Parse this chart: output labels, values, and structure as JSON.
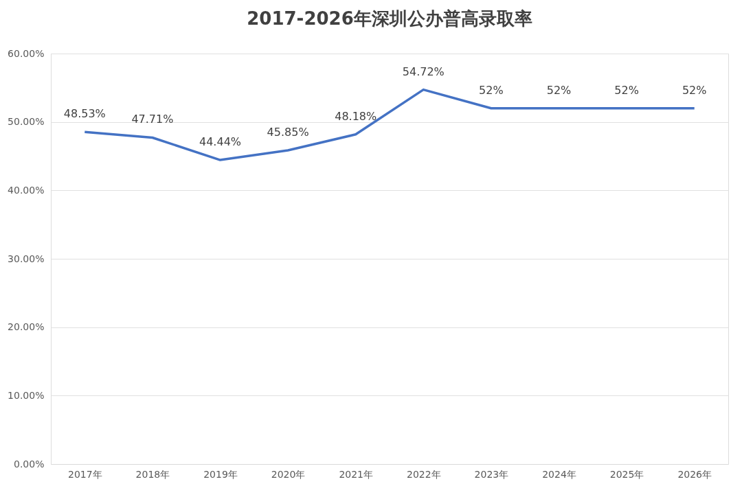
{
  "chart_data": {
    "type": "line",
    "title": "2017-2026年深圳公办普高录取率",
    "categories": [
      "2017年",
      "2018年",
      "2019年",
      "2020年",
      "2021年",
      "2022年",
      "2023年",
      "2024年",
      "2025年",
      "2026年"
    ],
    "series": [
      {
        "color": "#4472c4",
        "values": [
          48.53,
          47.71,
          44.44,
          45.85,
          48.18,
          54.72,
          52,
          52,
          52,
          52
        ],
        "value_labels": [
          "48.53%",
          "47.71%",
          "44.44%",
          "45.85%",
          "48.18%",
          "54.72%",
          "52%",
          "52%",
          "52%",
          "52%"
        ]
      }
    ],
    "ylim": [
      0,
      60
    ],
    "yticks": [
      {
        "value": 0,
        "label": "0.00%"
      },
      {
        "value": 10,
        "label": "10.00%"
      },
      {
        "value": 20,
        "label": "20.00%"
      },
      {
        "value": 30,
        "label": "30.00%"
      },
      {
        "value": 40,
        "label": "40.00%"
      },
      {
        "value": 50,
        "label": "50.00%"
      },
      {
        "value": 60,
        "label": "60.00%"
      }
    ],
    "grid": "y",
    "marker": "none",
    "line_style": "solid"
  }
}
